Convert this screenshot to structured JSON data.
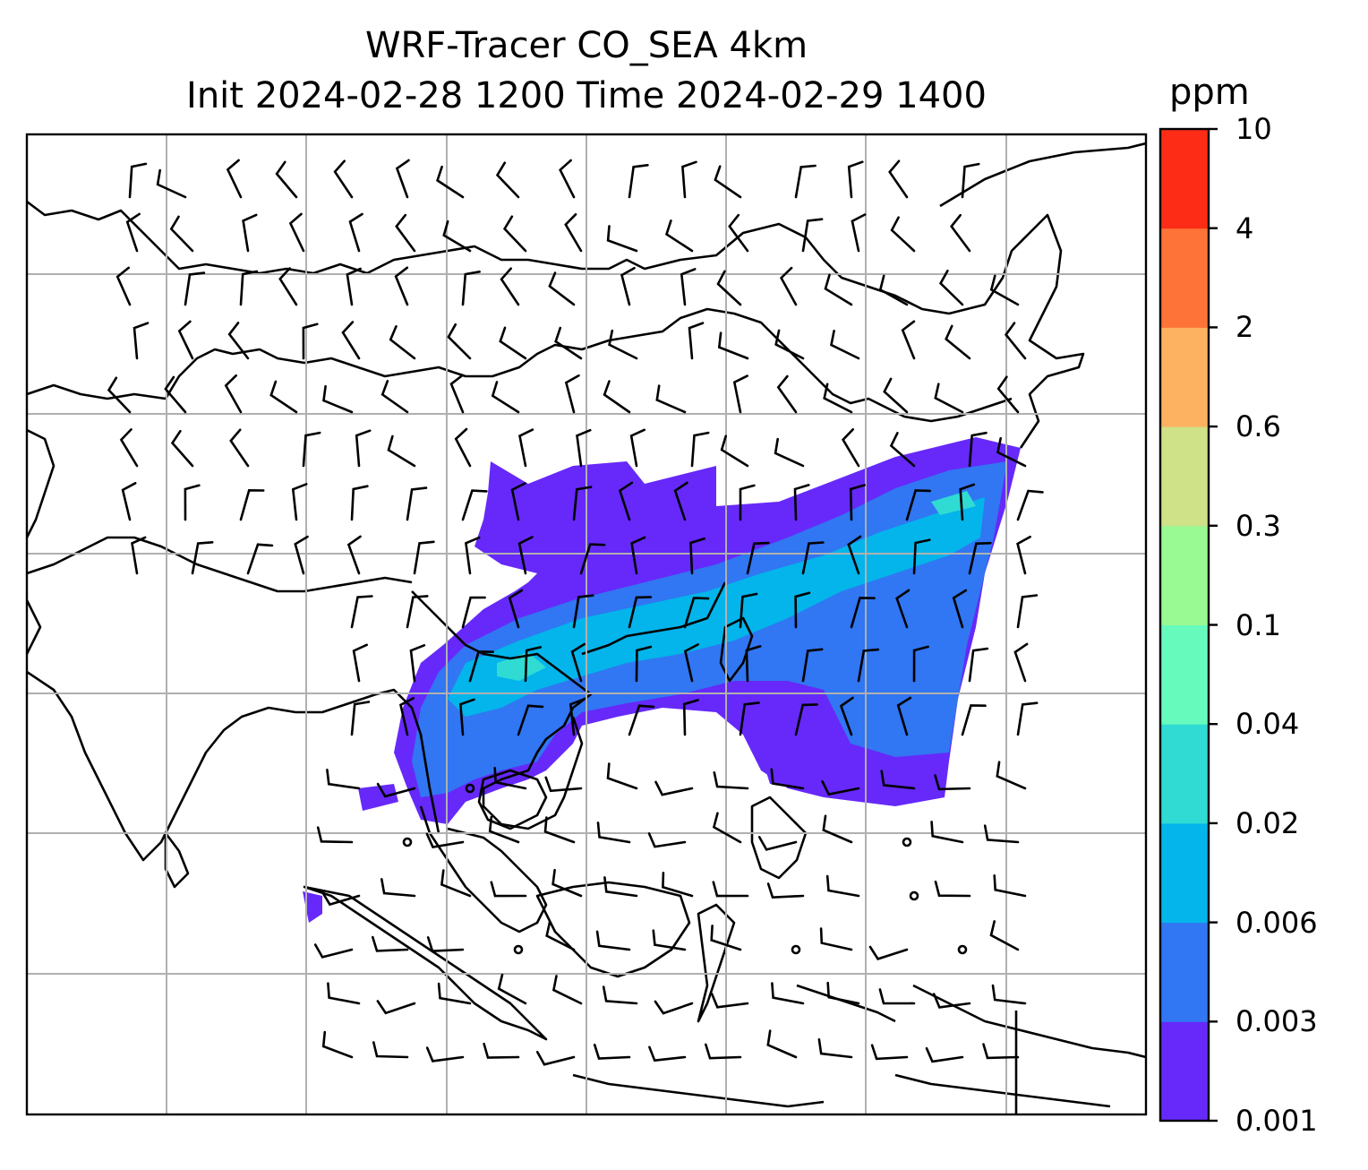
{
  "title": {
    "line1": "WRF-Tracer CO_SEA 4km",
    "line2": "Init 2024-02-28 1200 Time 2024-02-29 1400"
  },
  "colorbar": {
    "units": "ppm",
    "ticks": [
      "0.001",
      "0.003",
      "0.006",
      "0.02",
      "0.04",
      "0.1",
      "0.3",
      "0.6",
      "2",
      "4",
      "10"
    ],
    "colors": [
      "#6629fa",
      "#3176f2",
      "#03b5ea",
      "#2fdbd3",
      "#66fbbd",
      "#99f993",
      "#cfe287",
      "#fdb261",
      "#fe7438",
      "#fd2c16"
    ]
  },
  "map": {
    "gridlines": true,
    "plume_colors": [
      "#6629fa",
      "#3176f2",
      "#03b5ea",
      "#2fdbd3"
    ],
    "wind_barbs": true
  }
}
